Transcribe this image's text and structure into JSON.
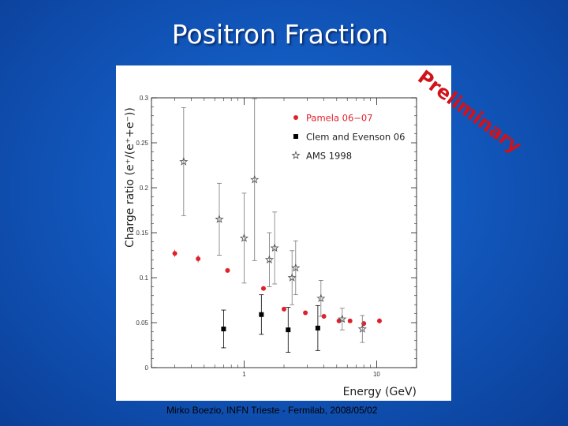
{
  "slide": {
    "title": "Positron Fraction",
    "stamp": "Preliminary",
    "footer": "Mirko Boezio, INFN Trieste - Fermilab, 2008/05/02"
  },
  "colors": {
    "background": "#1258bd",
    "pamela": "#e0202a",
    "clem": "#000000",
    "ams": "#555555",
    "stamp": "#d1121a"
  },
  "chart_data": {
    "type": "scatter",
    "xscale": "log",
    "xlim": [
      0.2,
      20
    ],
    "ylim": [
      0,
      0.3
    ],
    "xlabel": "Energy (GeV)",
    "ylabel": "Charge ratio (e⁺/(e⁺+e⁻))",
    "x_ticks": [
      {
        "value": 1,
        "label": "1"
      },
      {
        "value": 10,
        "label": "10"
      }
    ],
    "y_ticks": [
      {
        "value": 0,
        "label": "0"
      },
      {
        "value": 0.05,
        "label": "0.05"
      },
      {
        "value": 0.1,
        "label": "0.1"
      },
      {
        "value": 0.15,
        "label": "0.15"
      },
      {
        "value": 0.2,
        "label": "0.2"
      },
      {
        "value": 0.25,
        "label": "0.25"
      },
      {
        "value": 0.3,
        "label": "0.3"
      }
    ],
    "legend_position": "top-right",
    "series": [
      {
        "name": "Pamela 06−07",
        "marker": "circle",
        "points": [
          {
            "x": 0.3,
            "y": 0.127,
            "err": 0.004
          },
          {
            "x": 0.45,
            "y": 0.121,
            "err": 0.004
          },
          {
            "x": 0.75,
            "y": 0.108,
            "err": 0.002
          },
          {
            "x": 1.4,
            "y": 0.088,
            "err": 0.002
          },
          {
            "x": 2.0,
            "y": 0.065,
            "err": 0.002
          },
          {
            "x": 2.9,
            "y": 0.061,
            "err": 0.002
          },
          {
            "x": 4.0,
            "y": 0.057,
            "err": 0.002
          },
          {
            "x": 5.2,
            "y": 0.052,
            "err": 0.002
          },
          {
            "x": 6.3,
            "y": 0.052,
            "err": 0.002
          },
          {
            "x": 8.0,
            "y": 0.049,
            "err": 0.003
          },
          {
            "x": 10.5,
            "y": 0.052,
            "err": 0.003
          }
        ]
      },
      {
        "name": "Clem and Evenson 06",
        "marker": "square",
        "points": [
          {
            "x": 0.7,
            "y": 0.043,
            "err": 0.021
          },
          {
            "x": 1.35,
            "y": 0.059,
            "err": 0.022
          },
          {
            "x": 2.15,
            "y": 0.042,
            "err": 0.025
          },
          {
            "x": 3.6,
            "y": 0.044,
            "err": 0.025
          }
        ]
      },
      {
        "name": "AMS 1998",
        "marker": "star",
        "points": [
          {
            "x": 0.35,
            "y": 0.229,
            "err": 0.06
          },
          {
            "x": 0.65,
            "y": 0.165,
            "err": 0.04
          },
          {
            "x": 1.0,
            "y": 0.144,
            "err": 0.05
          },
          {
            "x": 1.2,
            "y": 0.209,
            "err": 0.09
          },
          {
            "x": 1.55,
            "y": 0.12,
            "err": 0.03
          },
          {
            "x": 1.7,
            "y": 0.133,
            "err": 0.04
          },
          {
            "x": 2.3,
            "y": 0.1,
            "err": 0.03
          },
          {
            "x": 2.45,
            "y": 0.111,
            "err": 0.03
          },
          {
            "x": 3.8,
            "y": 0.077,
            "err": 0.02
          },
          {
            "x": 5.5,
            "y": 0.054,
            "err": 0.012
          },
          {
            "x": 7.8,
            "y": 0.043,
            "err": 0.015
          }
        ]
      }
    ]
  }
}
